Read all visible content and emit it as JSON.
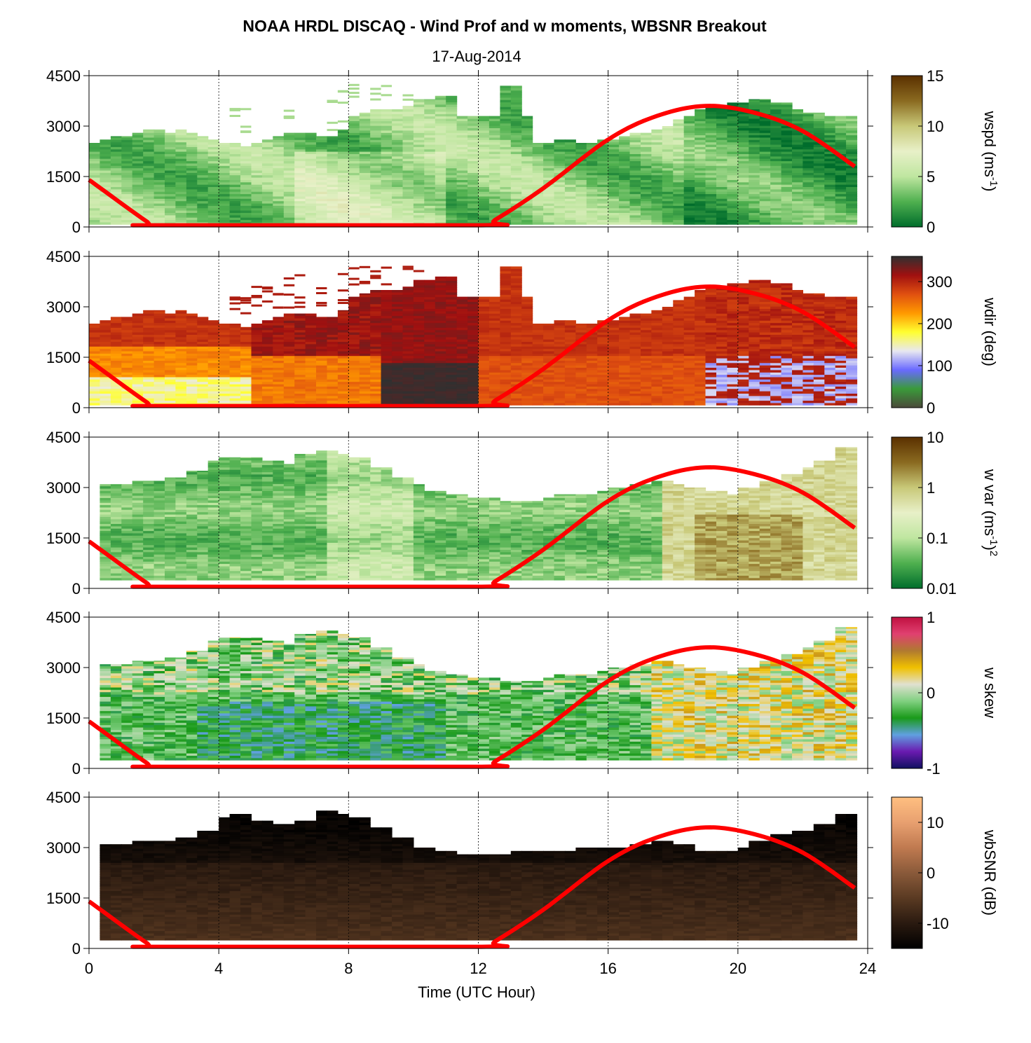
{
  "chart_data": {
    "type": "heatmap",
    "title": "NOAA HRDL DISCAQ - Wind Prof and w moments, WBSNR Breakout",
    "subtitle": "17-Aug-2014",
    "xlabel": "Time (UTC Hour)",
    "xlim": [
      0,
      24
    ],
    "xticks": [
      "0",
      "4",
      "8",
      "12",
      "16",
      "20",
      "24"
    ],
    "xtick_values": [
      0,
      4,
      8,
      12,
      16,
      20,
      24
    ],
    "grid": "dotted vertical",
    "panels": [
      {
        "name": "wspd",
        "colorbar_label": "wspd (ms",
        "colorbar_label_sup": "-1",
        "colorbar_label_end": ")",
        "ylim": [
          0,
          4500
        ],
        "yticks": [
          "0",
          "1500",
          "3000",
          "4500"
        ],
        "ytick_values": [
          0,
          1500,
          3000,
          4500
        ],
        "cbar_ticks": [
          "0",
          "5",
          "10",
          "15"
        ],
        "cbar_colors": [
          "#006d2c",
          "#4fb04f",
          "#bfe6a0",
          "#e8f0c8",
          "#c8c878",
          "#8a6a20",
          "#5a3000"
        ],
        "data_top_m": [
          2500,
          2600,
          2700,
          2700,
          2800,
          2900,
          2900,
          2800,
          2900,
          2800,
          2700,
          2600,
          2500,
          2500,
          2400,
          2500,
          2600,
          2700,
          2800,
          2800,
          2800,
          2700,
          2700,
          2900,
          3300,
          3400,
          3500,
          3500,
          3500,
          3600,
          3800,
          3800,
          3900,
          3900,
          3300,
          3300,
          3300,
          3300,
          4200,
          4200,
          3300,
          2500,
          2500,
          2600,
          2600,
          2500,
          2500,
          2600,
          2600,
          2700,
          2800,
          2800,
          2900,
          3000,
          3200,
          3300,
          3500,
          3600,
          3600,
          3700,
          3700,
          3800,
          3800,
          3700,
          3700,
          3500,
          3400,
          3400,
          3300,
          3300,
          3300,
          3300
        ]
      },
      {
        "name": "wdir",
        "colorbar_label": "wdir (deg)",
        "ylim": [
          0,
          4500
        ],
        "yticks": [
          "0",
          "1500",
          "3000",
          "4500"
        ],
        "ytick_values": [
          0,
          1500,
          3000,
          4500
        ],
        "cbar_ticks": [
          "0",
          "100",
          "200",
          "300"
        ],
        "cbar_colors": [
          "#4a4a3a",
          "#3a9a3a",
          "#6a6aff",
          "#e8e8f0",
          "#ffff30",
          "#ff9900",
          "#e05010",
          "#a01010",
          "#303030"
        ]
      },
      {
        "name": "w var",
        "colorbar_label": "w var (ms",
        "colorbar_label_sup": "-1",
        "colorbar_label_end": ")",
        "colorbar_label_sup2": "2",
        "ylim": [
          0,
          4500
        ],
        "yticks": [
          "0",
          "1500",
          "3000",
          "4500"
        ],
        "ytick_values": [
          0,
          1500,
          3000,
          4500
        ],
        "cbar_ticks": [
          "0.01",
          "0.1",
          "1",
          "10"
        ],
        "cbar_scale": "log",
        "cbar_colors": [
          "#006d2c",
          "#4fb04f",
          "#bfe6a0",
          "#e8f0c8",
          "#c8c878",
          "#8a6a20",
          "#5a3000"
        ]
      },
      {
        "name": "w skew",
        "colorbar_label": "w skew",
        "ylim": [
          0,
          4500
        ],
        "yticks": [
          "0",
          "1500",
          "3000",
          "4500"
        ],
        "ytick_values": [
          0,
          1500,
          3000,
          4500
        ],
        "cbar_ticks": [
          "-1",
          "0",
          "1"
        ],
        "cbar_colors": [
          "#101060",
          "#6a1ab0",
          "#60a0e0",
          "#1a9a1a",
          "#80d080",
          "#e0e0d0",
          "#f0c000",
          "#b07a30",
          "#e04070",
          "#c01040"
        ]
      },
      {
        "name": "wbSNR",
        "colorbar_label": "wbSNR (dB)",
        "ylim": [
          0,
          4500
        ],
        "yticks": [
          "0",
          "1500",
          "3000",
          "4500"
        ],
        "ytick_values": [
          0,
          1500,
          3000,
          4500
        ],
        "cbar_ticks": [
          "-10",
          "0",
          "10"
        ],
        "cbar_range": [
          -15,
          15
        ],
        "cbar_colors": [
          "#000000",
          "#2a1a10",
          "#5a3a22",
          "#8a5a3a",
          "#c07a50",
          "#e8a070",
          "#ffbf80"
        ]
      }
    ],
    "overlay_line": {
      "color": "#ff0000",
      "description_points_hour_m": [
        [
          0,
          1400
        ],
        [
          1.8,
          150
        ],
        [
          2.1,
          50
        ],
        [
          12.1,
          50
        ],
        [
          12.5,
          200
        ],
        [
          14,
          1150
        ],
        [
          16,
          2600
        ],
        [
          17.5,
          3300
        ],
        [
          19,
          3600
        ],
        [
          20.5,
          3400
        ],
        [
          22,
          2850
        ],
        [
          23.6,
          1800
        ]
      ]
    }
  }
}
